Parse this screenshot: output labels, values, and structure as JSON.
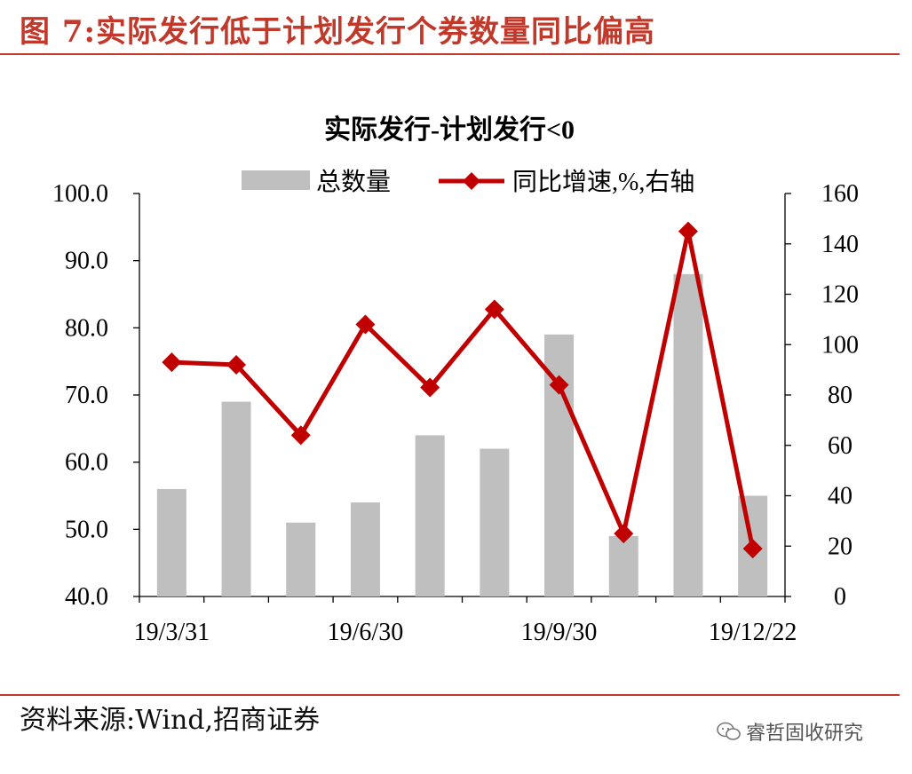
{
  "figure": {
    "title": "图 7:实际发行低于计划发行个券数量同比偏高",
    "source": "资料来源:Wind,招商证券",
    "watermark": "睿哲固收研究"
  },
  "chart_data": {
    "type": "bar",
    "title": "实际发行-计划发行<0",
    "categories": [
      "19/3/31",
      "",
      "",
      "19/6/30",
      "",
      "",
      "19/9/30",
      "",
      "",
      "19/12/22"
    ],
    "series": [
      {
        "name": "总数量",
        "type": "bar",
        "axis": "left",
        "color": "#bfbfbf",
        "values": [
          56,
          69,
          51,
          54,
          64,
          62,
          79,
          49,
          88,
          55
        ]
      },
      {
        "name": "同比增速,%,右轴",
        "type": "line",
        "axis": "right",
        "color": "#c00000",
        "marker": "diamond",
        "values": [
          93,
          92,
          64,
          108,
          83,
          114,
          84,
          25,
          145,
          19
        ]
      }
    ],
    "y_left": {
      "lim": [
        40,
        100
      ],
      "ticks": [
        "40.0",
        "50.0",
        "60.0",
        "70.0",
        "80.0",
        "90.0",
        "100.0"
      ]
    },
    "y_right": {
      "lim": [
        0,
        160
      ],
      "ticks": [
        "0",
        "20",
        "40",
        "60",
        "80",
        "100",
        "120",
        "140",
        "160"
      ]
    },
    "x_tick_labels": [
      "19/3/31",
      "19/6/30",
      "19/9/30",
      "19/12/22"
    ],
    "legend_position": "top",
    "grid": false
  }
}
